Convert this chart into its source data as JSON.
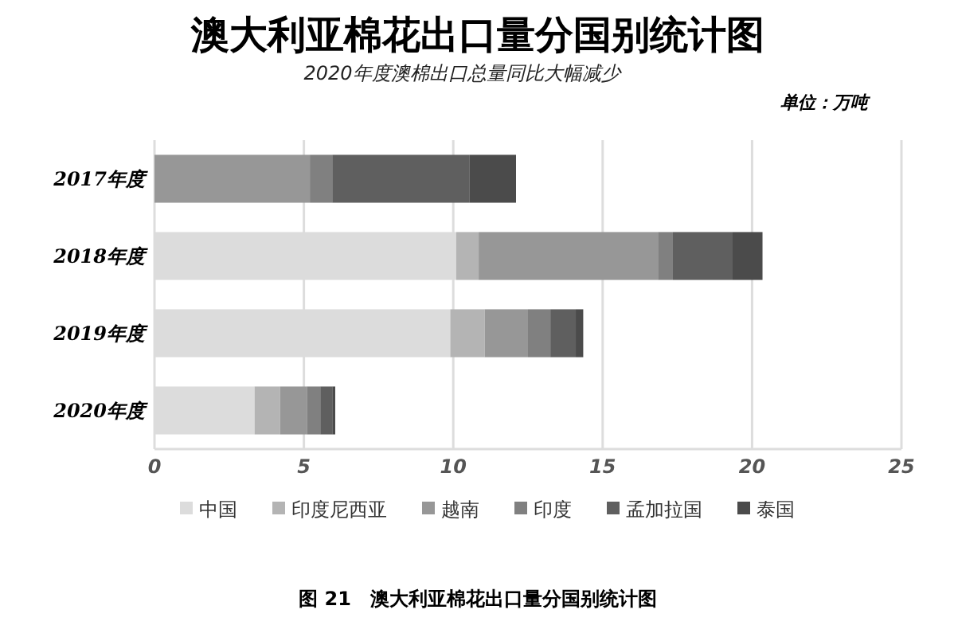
{
  "chart_data": {
    "type": "bar",
    "orientation": "horizontal",
    "stacked": true,
    "title": "澳大利亚棉花出口量分国别统计图",
    "subtitle": "2020年度澳棉出口总量同比大幅减少",
    "annotations": [
      "单位：万吨",
      "图 21　澳大利亚棉花出口量分国别统计图"
    ],
    "categories": [
      "2017年度",
      "2018年度",
      "2019年度",
      "2020年度"
    ],
    "series": [
      {
        "name": "中国",
        "color": "#dcdcdc",
        "values": [
          0,
          10.1,
          9.9,
          3.35
        ]
      },
      {
        "name": "印度尼西亚",
        "color": "#b4b4b4",
        "values": [
          0,
          0.75,
          1.15,
          0.85
        ]
      },
      {
        "name": "越南",
        "color": "#979797",
        "values": [
          5.2,
          6.0,
          1.45,
          0.9
        ]
      },
      {
        "name": "印度",
        "color": "#808080",
        "values": [
          0.75,
          0.5,
          0.75,
          0.45
        ]
      },
      {
        "name": "孟加拉国",
        "color": "#5f5f5f",
        "values": [
          4.6,
          2.0,
          0.85,
          0.4
        ]
      },
      {
        "name": "泰国",
        "color": "#4b4b4b",
        "values": [
          1.55,
          1.0,
          0.25,
          0.1
        ]
      }
    ],
    "xlim": [
      0,
      25
    ],
    "xticks": [
      0,
      5,
      10,
      15,
      20,
      25
    ],
    "grid": "x",
    "legend": "bottom"
  }
}
